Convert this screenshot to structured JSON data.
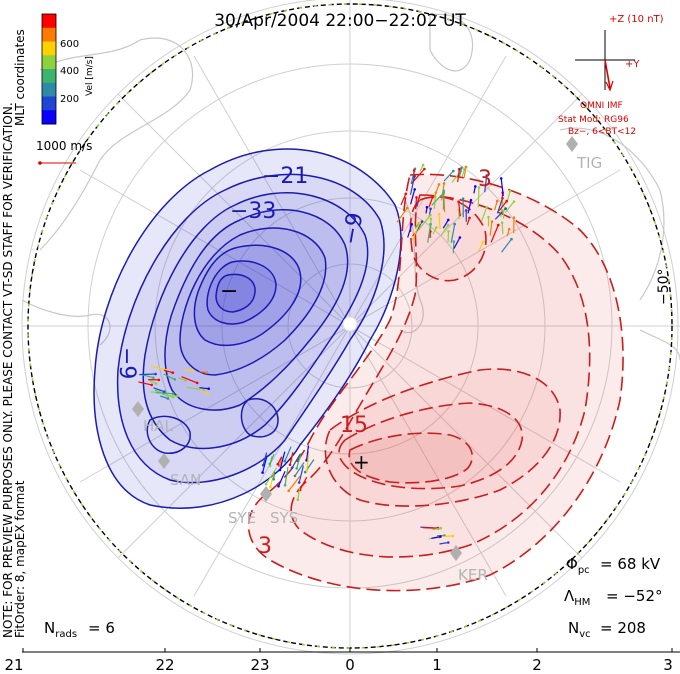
{
  "title": "30/Apr/2004  22:00−22:02  UT",
  "side_note_line1": "NOTE: FOR PREVIEW PURPOSES ONLY. PLEASE CONTACT VT-SD STAFF FOR VERIFICATION.",
  "side_note_line2": "FitOrder: 8, mapEX format",
  "coord_label": "MLT coordinates",
  "colorbar": {
    "label": "Vel [m/s]",
    "ticks": [
      "600",
      "400",
      "200"
    ],
    "colors": [
      "#ff0000",
      "#ff7a00",
      "#ffd000",
      "#8cd23c",
      "#3cb46e",
      "#2e8aa8",
      "#1f46d2",
      "#0a00ff"
    ]
  },
  "ref_vector": "1000 m/s",
  "imf": {
    "header": "+Z (10 nT)",
    "y_label": "+Y",
    "source": "OMNI IMF",
    "stat_mod": "Stat Mod: RG96",
    "condition": "Bz−, 6<BT<12"
  },
  "latitude_label": "−50°",
  "stations": [
    "TIG",
    "HAL",
    "SAN",
    "SYE",
    "SYS",
    "KER"
  ],
  "contours": {
    "negative": [
      "−21",
      "−33",
      "−9",
      "−9"
    ],
    "positive": [
      "15",
      "3",
      "3"
    ],
    "min_marker": "−",
    "max_marker": "+"
  },
  "stats": {
    "phi_label": "Φ",
    "phi_sub": "pc",
    "phi_value": "= 68 kV",
    "lambda_label": "Λ",
    "lambda_sub": "HM",
    "lambda_value": "= −52°",
    "nvc_label": "N",
    "nvc_sub": "vc",
    "nvc_value": "= 208",
    "nrads_label": "N",
    "nrads_sub": "rads",
    "nrads_value": "= 6"
  },
  "mlt_ticks": [
    "21",
    "22",
    "23",
    "0",
    "1",
    "2",
    "3"
  ],
  "colors": {
    "negative_line": "#1a1ab4",
    "positive_line": "#c81e1e",
    "negative_fill": "#3c3cd2",
    "positive_fill": "#e65a5a",
    "boundary_green": "#8cd23c",
    "grid": "#cfcfcf",
    "coast": "#c8c8c8",
    "imf_red": "#dd0000"
  }
}
